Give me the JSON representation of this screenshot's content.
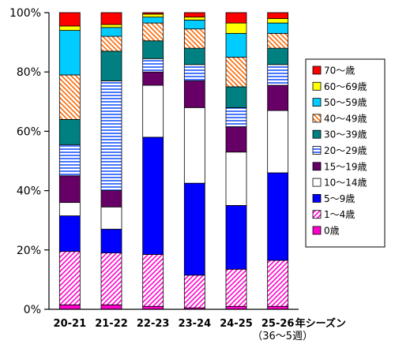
{
  "chart_data": {
    "type": "bar",
    "stacked": true,
    "percent": true,
    "categories": [
      "20-21",
      "21-22",
      "22-23",
      "23-24",
      "24-25",
      "25-26"
    ],
    "category_sublabels": [
      "",
      "",
      "",
      "",
      "",
      "（36～5週）"
    ],
    "xlabel": "年シーズン",
    "ylabel": "",
    "yticks": [
      "0%",
      "20%",
      "40%",
      "60%",
      "80%",
      "100%"
    ],
    "ylim": [
      0,
      100
    ],
    "grid": false,
    "legend_position": "right",
    "series": [
      {
        "name": "0歳",
        "color": "#ff00cc",
        "pattern": "solid",
        "values": [
          1.5,
          1.5,
          1.0,
          0.5,
          1.0,
          1.0
        ]
      },
      {
        "name": "1～4歳",
        "color": "#ff00cc",
        "pattern": "diag-right",
        "values": [
          18.0,
          17.5,
          17.5,
          11.0,
          12.5,
          15.5
        ]
      },
      {
        "name": "5～9歳",
        "color": "#0000ff",
        "pattern": "solid",
        "values": [
          12.0,
          8.0,
          39.5,
          31.0,
          21.5,
          29.5
        ]
      },
      {
        "name": "10～14歳",
        "color": "#ffffff",
        "pattern": "solid",
        "values": [
          4.5,
          7.5,
          17.5,
          25.5,
          18.0,
          21.0
        ]
      },
      {
        "name": "15～19歳",
        "color": "#660066",
        "pattern": "solid",
        "values": [
          9.0,
          5.5,
          4.5,
          9.0,
          8.5,
          8.5
        ]
      },
      {
        "name": "20～29歳",
        "color": "#3366ff",
        "pattern": "horizontal",
        "values": [
          10.5,
          37.0,
          4.5,
          5.5,
          6.5,
          7.0
        ]
      },
      {
        "name": "30～39歳",
        "color": "#008080",
        "pattern": "solid",
        "values": [
          8.5,
          10.0,
          6.0,
          5.5,
          7.0,
          5.5
        ]
      },
      {
        "name": "40～49歳",
        "color": "#ff6600",
        "pattern": "diag-left",
        "values": [
          15.0,
          5.0,
          6.0,
          6.5,
          10.0,
          5.0
        ]
      },
      {
        "name": "50～59歳",
        "color": "#00ccff",
        "pattern": "solid",
        "values": [
          15.0,
          3.0,
          2.0,
          3.0,
          8.0,
          3.5
        ]
      },
      {
        "name": "60～69歳",
        "color": "#ffff00",
        "pattern": "solid",
        "values": [
          1.5,
          1.0,
          1.0,
          1.0,
          3.5,
          1.5
        ]
      },
      {
        "name": "70～歳",
        "color": "#ff0000",
        "pattern": "solid",
        "values": [
          4.5,
          4.0,
          0.5,
          1.5,
          3.5,
          2.0
        ]
      }
    ]
  }
}
